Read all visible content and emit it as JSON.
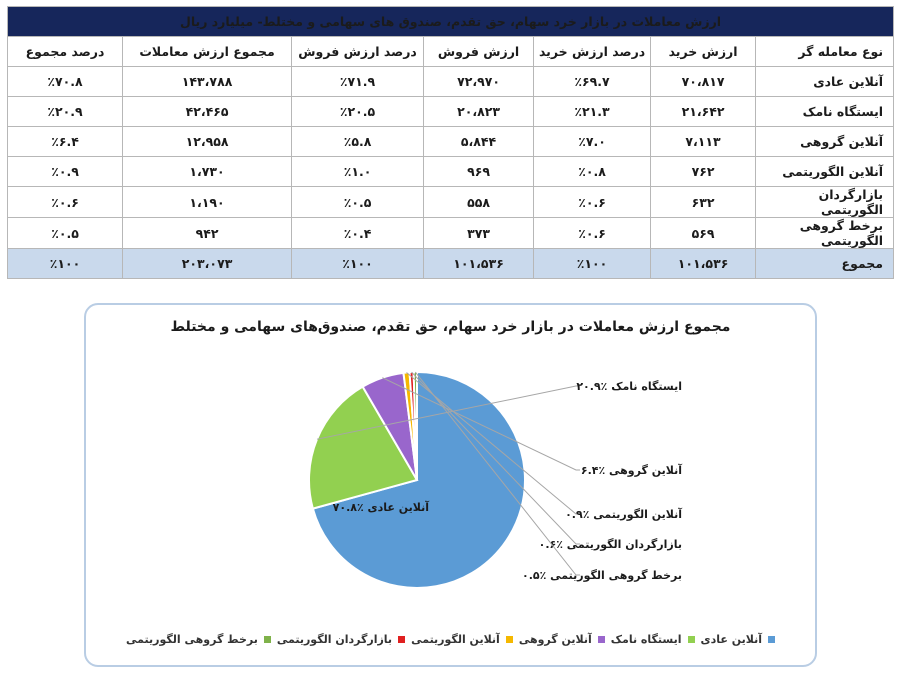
{
  "table": {
    "title": "ارزش معاملات در بازار خرد سهام، حق تقدم، صندوق های سهامی و مختلط- میلیارد ریال",
    "headers": [
      "نوع معامله گر",
      "ارزش خرید",
      "درصد ارزش خرید",
      "ارزش فروش",
      "درصد ارزش فروش",
      "مجموع ارزش معاملات",
      "درصد مجموع"
    ],
    "rows": [
      [
        "آنلاین عادی",
        "۷۰،۸۱۷",
        "٪۶۹.۷",
        "۷۲،۹۷۰",
        "٪۷۱.۹",
        "۱۴۳،۷۸۸",
        "٪۷۰.۸"
      ],
      [
        "ایستگاه نامک",
        "۲۱،۶۴۲",
        "٪۲۱.۳",
        "۲۰،۸۲۳",
        "٪۲۰.۵",
        "۴۲،۴۶۵",
        "٪۲۰.۹"
      ],
      [
        "آنلاین گروهی",
        "۷،۱۱۳",
        "٪۷.۰",
        "۵،۸۴۴",
        "٪۵.۸",
        "۱۲،۹۵۸",
        "٪۶.۴"
      ],
      [
        "آنلاین الگوریتمی",
        "۷۶۲",
        "٪۰.۸",
        "۹۶۹",
        "٪۱.۰",
        "۱،۷۳۰",
        "٪۰.۹"
      ],
      [
        "بازارگردان الگوریتمی",
        "۶۳۲",
        "٪۰.۶",
        "۵۵۸",
        "٪۰.۵",
        "۱،۱۹۰",
        "٪۰.۶"
      ],
      [
        "برخط گروهی الگوریتمی",
        "۵۶۹",
        "٪۰.۶",
        "۳۷۳",
        "٪۰.۴",
        "۹۴۲",
        "٪۰.۵"
      ]
    ],
    "total": [
      "مجموع",
      "۱۰۱،۵۳۶",
      "٪۱۰۰",
      "۱۰۱،۵۳۶",
      "٪۱۰۰",
      "۲۰۳،۰۷۳",
      "٪۱۰۰"
    ]
  },
  "chart_data": {
    "type": "pie",
    "title": "مجموع ارزش معاملات در بازار خرد سهام، حق تقدم، صندوق‌های سهامی و مختلط",
    "categories": [
      "آنلاین عادی",
      "ایستگاه نامک",
      "آنلاین گروهی",
      "آنلاین الگوریتمی",
      "بازارگردان الگوریتمی",
      "برخط گروهی الگوریتمی"
    ],
    "values": [
      70.8,
      20.9,
      6.4,
      0.9,
      0.6,
      0.5
    ],
    "colors": [
      "#5b9bd5",
      "#92d050",
      "#9966cc",
      "#f5b800",
      "#e02020",
      "#7fb24a"
    ],
    "labels": [
      "آنلاین عادی ٪۷۰.۸",
      "ایستگاه نامک ٪۲۰.۹",
      "آنلاین گروهی ٪۶.۴",
      "آنلاین الگوریتمی ٪۰.۹",
      "بازارگردان الگوریتمی ٪۰.۶",
      "برخط گروهی الگوریتمی ٪۰.۵"
    ],
    "legend_position": "bottom"
  }
}
